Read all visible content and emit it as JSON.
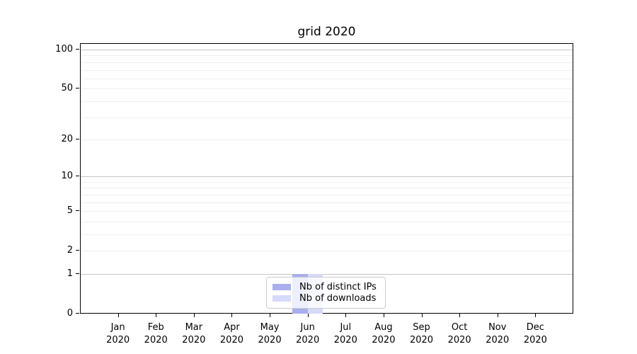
{
  "chart_data": {
    "type": "bar",
    "title": "grid 2020",
    "categories": [
      "Jan 2020",
      "Feb 2020",
      "Mar 2020",
      "Apr 2020",
      "May 2020",
      "Jun 2020",
      "Jul 2020",
      "Aug 2020",
      "Sep 2020",
      "Oct 2020",
      "Nov 2020",
      "Dec 2020"
    ],
    "category_months": [
      "Jan",
      "Feb",
      "Mar",
      "Apr",
      "May",
      "Jun",
      "Jul",
      "Aug",
      "Sep",
      "Oct",
      "Nov",
      "Dec"
    ],
    "category_year": "2020",
    "series": [
      {
        "name": "Nb of distinct IPs",
        "color": "#a9aeed",
        "values": [
          0,
          0,
          0,
          0,
          0,
          1,
          0,
          0,
          0,
          0,
          0,
          0
        ]
      },
      {
        "name": "Nb of downloads",
        "color": "#d6daf8",
        "values": [
          0,
          0,
          0,
          0,
          0,
          1,
          0,
          0,
          0,
          0,
          0,
          0
        ]
      }
    ],
    "xlabel": "",
    "ylabel": "",
    "yticks": [
      0,
      1,
      2,
      5,
      10,
      20,
      50,
      100
    ],
    "ylim": [
      0,
      112
    ],
    "yscale": "log1p",
    "grid": true,
    "minor_grid_values": [
      2,
      3,
      4,
      5,
      6,
      7,
      8,
      9,
      20,
      30,
      40,
      50,
      60,
      70,
      80,
      90
    ],
    "major_grid_values": [
      1,
      10,
      100
    ],
    "legend_position": "lower center",
    "colors": {
      "major_grid": "#c6c6c6",
      "minor_grid": "#efefef",
      "axis": "#000000",
      "legend_border": "#cccccc",
      "background": "#ffffff"
    }
  }
}
